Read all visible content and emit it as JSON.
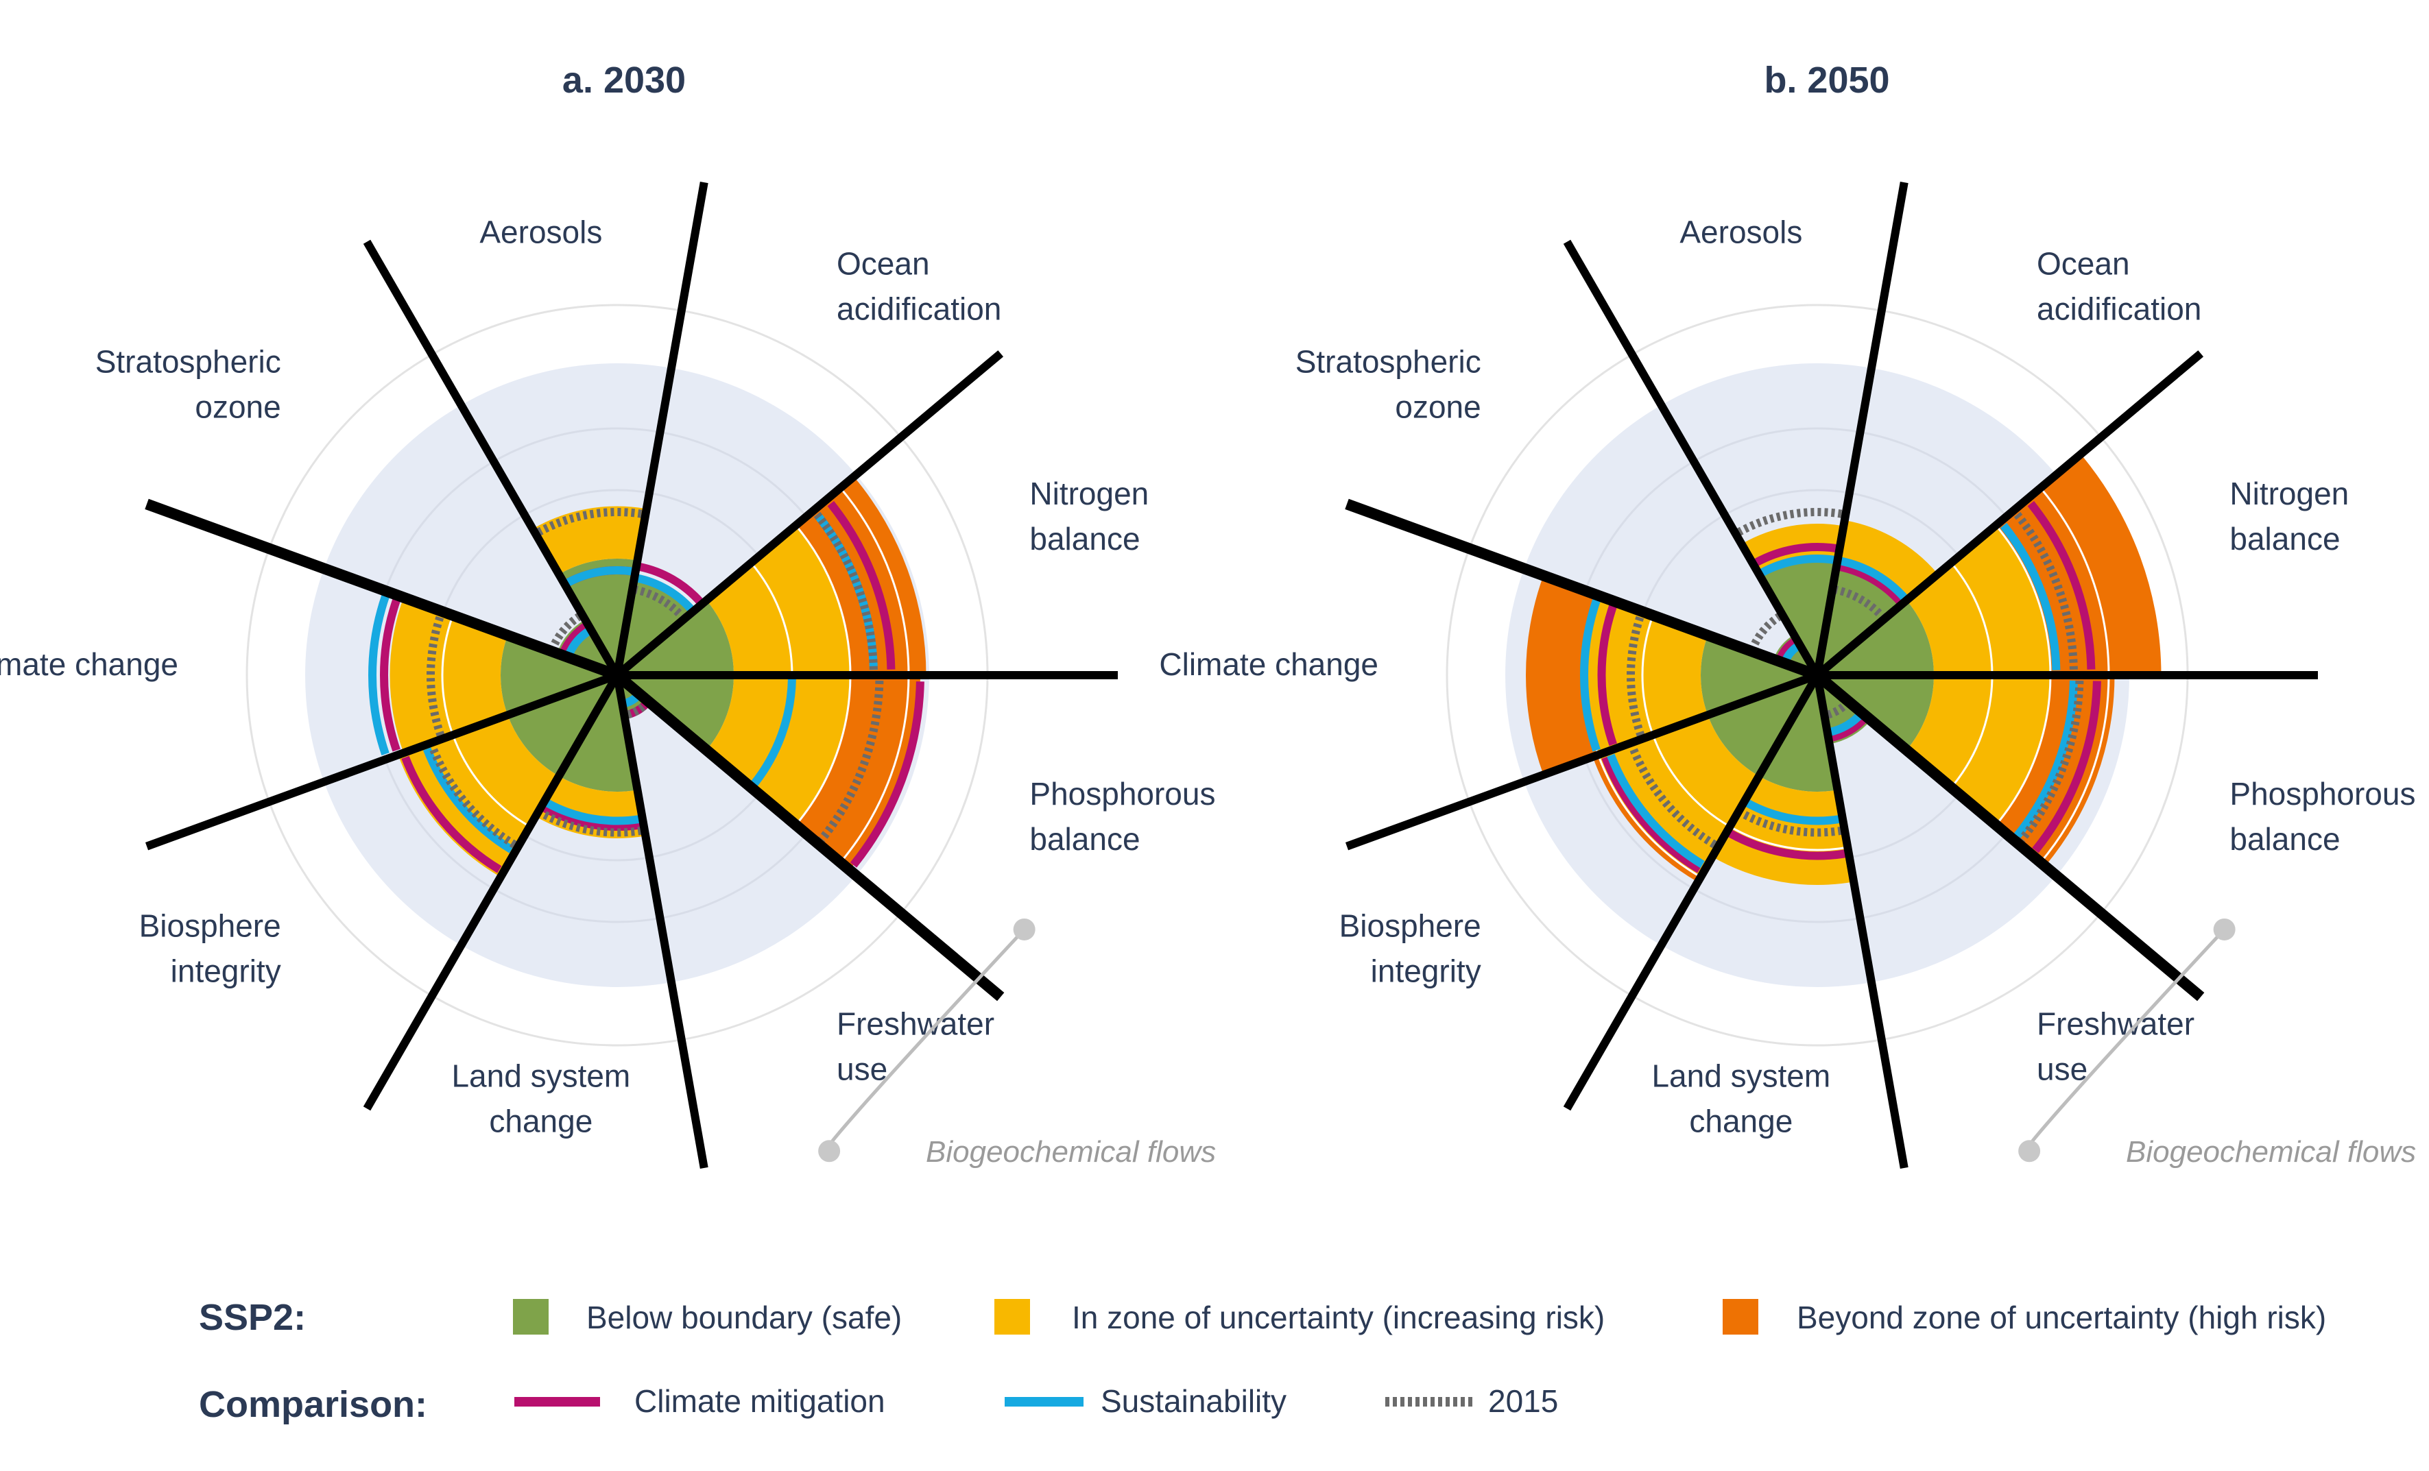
{
  "colors": {
    "safe": "#7fa34a",
    "uncertainty": "#f8b800",
    "high_risk": "#ee7203",
    "climate_mitigation": "#b8106e",
    "sustainability": "#16a9e1",
    "baseline_2015": "#6b6b6b",
    "background_disc": "#e6ebf5",
    "text": "#2b3a55"
  },
  "boundaries": [
    "Stratospheric ozone",
    "Aerosols",
    "Ocean acidification",
    "Nitrogen balance",
    "Phosphorous balance",
    "Freshwater use",
    "Land system change",
    "Biosphere integrity",
    "Climate change"
  ],
  "boundary_labels": [
    [
      "Stratospheric",
      "ozone"
    ],
    [
      "Aerosols"
    ],
    [
      "Ocean",
      "acidification"
    ],
    [
      "Nitrogen",
      "balance"
    ],
    [
      "Phosphorous",
      "balance"
    ],
    [
      "Freshwater",
      "use"
    ],
    [
      "Land system",
      "change"
    ],
    [
      "Biosphere",
      "integrity"
    ],
    [
      "Climate change"
    ]
  ],
  "biogeochemical_label": "Biogeochemical flows",
  "chart_data": [
    {
      "type": "radial-bar",
      "title": "a. 2030",
      "scenario": "SSP2",
      "categories": [
        "Stratospheric ozone",
        "Aerosols",
        "Ocean acidification",
        "Nitrogen balance",
        "Phosphorous balance",
        "Freshwater use",
        "Land system change",
        "Biosphere integrity",
        "Climate change"
      ],
      "series": [
        {
          "name": "SSP2",
          "values": [
            0.55,
            1.45,
            0.85,
            2.65,
            2.6,
            0.35,
            1.4,
            2.0,
            1.95
          ]
        },
        {
          "name": "Climate mitigation",
          "values": [
            0.5,
            0.9,
            0.95,
            2.35,
            2.6,
            0.35,
            1.3,
            1.95,
            2.0
          ]
        },
        {
          "name": "Sustainability",
          "values": [
            0.45,
            0.9,
            0.85,
            2.2,
            1.5,
            0.25,
            1.25,
            1.75,
            2.1
          ]
        },
        {
          "name": "2015",
          "values": [
            0.6,
            1.4,
            0.75,
            2.2,
            2.25,
            0.35,
            1.35,
            1.7,
            1.6
          ]
        }
      ]
    },
    {
      "type": "radial-bar",
      "title": "b. 2050",
      "scenario": "SSP2",
      "categories": [
        "Stratospheric ozone",
        "Aerosols",
        "Ocean acidification",
        "Nitrogen balance",
        "Phosphorous balance",
        "Freshwater use",
        "Land system change",
        "Biosphere integrity",
        "Climate change"
      ],
      "series": [
        {
          "name": "SSP2",
          "values": [
            0.4,
            1.3,
            1.35,
            2.95,
            2.55,
            0.6,
            1.8,
            2.05,
            2.5
          ]
        },
        {
          "name": "Climate mitigation",
          "values": [
            0.35,
            1.1,
            0.95,
            2.35,
            2.4,
            0.55,
            1.55,
            1.95,
            1.85
          ]
        },
        {
          "name": "Sustainability",
          "values": [
            0.3,
            1.0,
            1.0,
            2.05,
            2.2,
            0.5,
            1.25,
            1.9,
            2.0
          ]
        },
        {
          "name": "2015",
          "values": [
            0.6,
            1.4,
            0.75,
            2.2,
            2.25,
            0.35,
            1.35,
            1.7,
            1.6
          ]
        }
      ]
    }
  ],
  "legend": {
    "ssp2_label": "SSP2:",
    "comparison_label": "Comparison:",
    "safe": "Below boundary (safe)",
    "uncertainty": "In zone of uncertainty (increasing risk)",
    "high_risk": "Beyond zone of uncertainty (high risk)",
    "climate_mitigation": "Climate mitigation",
    "sustainability": "Sustainability",
    "baseline_2015": "2015"
  }
}
